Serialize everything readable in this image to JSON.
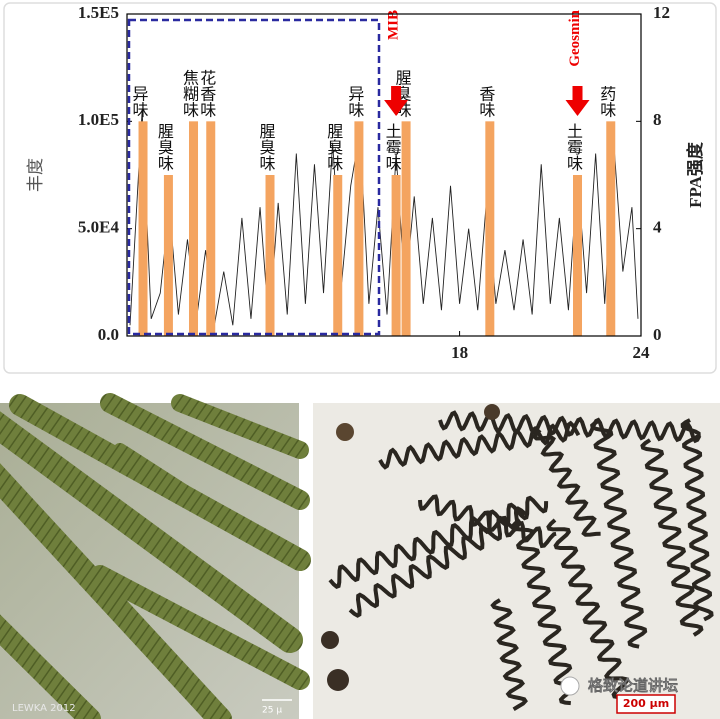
{
  "chart_data": {
    "type": "line-bar",
    "y_label": "丰度",
    "y2_label": "FPA强度",
    "xlim": [
      7,
      24
    ],
    "xticks": [
      18,
      24
    ],
    "ylim": [
      0,
      150000
    ],
    "yticks": [
      {
        "value": 0,
        "label": "0.0"
      },
      {
        "value": 50000,
        "label": "5.0E4"
      },
      {
        "value": 100000,
        "label": "1.0E5"
      },
      {
        "value": 150000,
        "label": "1.5E5"
      }
    ],
    "y2lim": [
      0,
      12
    ],
    "y2ticks": [
      0,
      4,
      8,
      12
    ],
    "series": [
      {
        "type": "line",
        "color": "#222222",
        "x": [
          7.1,
          7.5,
          7.8,
          8.1,
          8.4,
          8.7,
          9.0,
          9.3,
          9.6,
          9.9,
          10.2,
          10.5,
          10.8,
          11.1,
          11.4,
          11.7,
          12.0,
          12.3,
          12.6,
          12.9,
          13.2,
          13.5,
          13.8,
          14.1,
          14.4,
          14.7,
          15.0,
          15.3,
          15.6,
          15.9,
          16.2,
          16.5,
          16.8,
          17.1,
          17.4,
          17.7,
          18.0,
          18.3,
          18.6,
          18.9,
          19.2,
          19.5,
          19.8,
          20.1,
          20.4,
          20.7,
          21.0,
          21.3,
          21.6,
          21.9,
          22.2,
          22.5,
          22.8,
          23.1,
          23.4,
          23.7,
          23.9
        ],
        "values": [
          5000,
          105000,
          8000,
          20000,
          60000,
          10000,
          45000,
          8000,
          40000,
          6000,
          30000,
          5000,
          55000,
          8000,
          60000,
          4000,
          62000,
          10000,
          85000,
          15000,
          80000,
          20000,
          90000,
          25000,
          70000,
          95000,
          15000,
          60000,
          10000,
          85000,
          20000,
          65000,
          15000,
          55000,
          12000,
          70000,
          15000,
          50000,
          12000,
          65000,
          15000,
          40000,
          12000,
          45000,
          10000,
          80000,
          15000,
          55000,
          12000,
          75000,
          20000,
          85000,
          15000,
          90000,
          30000,
          60000,
          8000
        ]
      },
      {
        "type": "bar",
        "axis": "y2",
        "color": "#f4a460",
        "x": [
          7.53,
          8.37,
          9.2,
          9.77,
          11.73,
          13.97,
          14.67,
          15.9,
          16.23,
          19.0,
          21.9,
          23.0
        ],
        "values": [
          8,
          6,
          8,
          8,
          6,
          6,
          8,
          6,
          8,
          8,
          6,
          8
        ],
        "labels": [
          "异味",
          "腥臭味",
          "焦糊味",
          "花香味",
          "腥臭味",
          "腥臭味",
          "异味",
          "土霉味",
          "腥臭味",
          "香味",
          "土霉味",
          "药味"
        ]
      }
    ],
    "annotations": [
      {
        "text": "MIB",
        "x": 15.9
      },
      {
        "text": "Geosmin",
        "x": 21.9
      }
    ]
  },
  "photos": {
    "left_credit": "LEWKA 2012",
    "left_scale": "25 μ",
    "right_scale": "200 μm",
    "watermark": "格致论道讲坛"
  }
}
